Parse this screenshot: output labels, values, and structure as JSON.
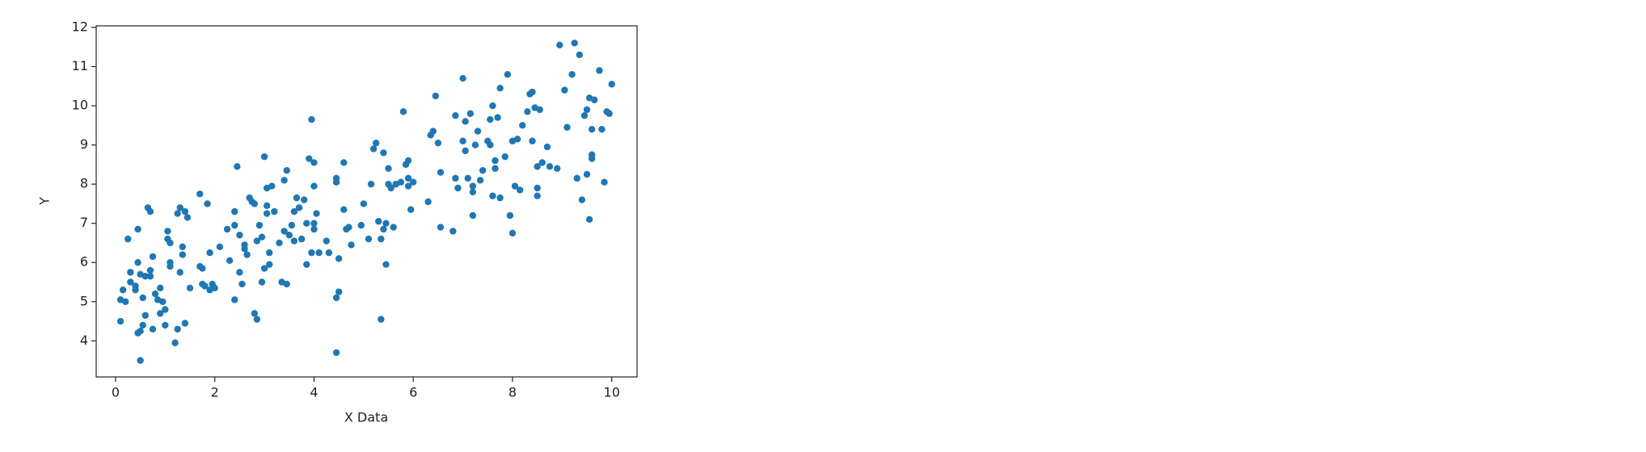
{
  "chart_data": {
    "type": "scatter",
    "xlabel": "X Data",
    "ylabel": "Y",
    "color": "#1f77b4",
    "xlim": [
      -0.39,
      10.51
    ],
    "ylim": [
      3.08,
      12.04
    ],
    "xticks": [
      0,
      2,
      4,
      6,
      8,
      10
    ],
    "yticks": [
      4,
      5,
      6,
      7,
      8,
      9,
      10,
      11,
      12
    ],
    "x": [
      0.1,
      0.1,
      0.15,
      0.2,
      0.25,
      0.3,
      0.3,
      0.4,
      0.4,
      0.45,
      0.45,
      0.45,
      0.5,
      0.5,
      0.5,
      0.55,
      0.55,
      0.6,
      0.6,
      0.65,
      0.7,
      0.7,
      0.7,
      0.75,
      0.75,
      0.8,
      0.85,
      0.9,
      0.9,
      0.95,
      1.0,
      1.0,
      1.05,
      1.05,
      1.1,
      1.1,
      1.1,
      1.2,
      1.25,
      1.25,
      1.3,
      1.3,
      1.35,
      1.35,
      1.4,
      1.4,
      1.45,
      1.5,
      1.7,
      1.7,
      1.75,
      1.75,
      1.8,
      1.85,
      1.9,
      1.9,
      1.95,
      2.0,
      2.1,
      2.25,
      2.3,
      2.4,
      2.4,
      2.4,
      2.45,
      2.5,
      2.5,
      2.55,
      2.6,
      2.6,
      2.65,
      2.7,
      2.75,
      2.8,
      2.8,
      2.85,
      2.85,
      2.9,
      2.95,
      2.95,
      3.0,
      3.0,
      3.05,
      3.05,
      3.05,
      3.1,
      3.1,
      3.15,
      3.2,
      3.3,
      3.35,
      3.4,
      3.4,
      3.45,
      3.45,
      3.5,
      3.55,
      3.6,
      3.6,
      3.65,
      3.7,
      3.75,
      3.8,
      3.85,
      3.85,
      3.9,
      3.95,
      3.95,
      4.0,
      4.0,
      4.0,
      4.0,
      4.05,
      4.1,
      4.25,
      4.3,
      4.45,
      4.45,
      4.45,
      4.45,
      4.5,
      4.5,
      4.6,
      4.6,
      4.65,
      4.7,
      4.75,
      4.95,
      5.0,
      5.1,
      5.15,
      5.2,
      5.25,
      5.3,
      5.35,
      5.35,
      5.4,
      5.4,
      5.45,
      5.45,
      5.5,
      5.5,
      5.55,
      5.6,
      5.65,
      5.75,
      5.8,
      5.85,
      5.9,
      5.9,
      5.9,
      5.95,
      6.0,
      6.3,
      6.35,
      6.4,
      6.45,
      6.5,
      6.55,
      6.55,
      6.8,
      6.85,
      6.85,
      6.9,
      7.0,
      7.0,
      7.05,
      7.05,
      7.1,
      7.15,
      7.2,
      7.2,
      7.2,
      7.25,
      7.3,
      7.35,
      7.4,
      7.5,
      7.55,
      7.55,
      7.6,
      7.6,
      7.65,
      7.65,
      7.7,
      7.75,
      7.75,
      7.85,
      7.9,
      7.95,
      8.0,
      8.0,
      8.05,
      8.1,
      8.15,
      8.2,
      8.3,
      8.35,
      8.4,
      8.4,
      8.45,
      8.5,
      8.5,
      8.5,
      8.55,
      8.6,
      8.7,
      8.75,
      8.9,
      8.95,
      9.05,
      9.1,
      9.2,
      9.25,
      9.3,
      9.35,
      9.4,
      9.45,
      9.5,
      9.5,
      9.55,
      9.55,
      9.6,
      9.6,
      9.65,
      9.6,
      9.75,
      9.8,
      9.85,
      9.9,
      9.95,
      10.0
    ],
    "values": [
      5.05,
      4.5,
      5.3,
      5.0,
      6.6,
      5.5,
      5.75,
      5.4,
      5.3,
      6.85,
      6.0,
      4.2,
      4.25,
      3.5,
      5.7,
      4.4,
      5.1,
      5.65,
      4.65,
      7.4,
      7.3,
      5.8,
      5.65,
      6.15,
      4.3,
      5.2,
      5.05,
      5.35,
      4.7,
      5.0,
      4.8,
      4.4,
      6.8,
      6.6,
      6.5,
      6.0,
      5.9,
      3.95,
      4.3,
      7.25,
      7.4,
      5.75,
      6.2,
      6.4,
      7.3,
      4.45,
      7.15,
      5.35,
      7.75,
      5.9,
      5.85,
      5.45,
      5.4,
      7.5,
      5.3,
      6.25,
      5.45,
      5.35,
      6.4,
      6.85,
      6.05,
      5.05,
      7.3,
      6.95,
      8.45,
      5.75,
      6.7,
      5.45,
      6.35,
      6.45,
      6.2,
      7.65,
      7.55,
      7.5,
      4.7,
      4.55,
      6.55,
      6.95,
      5.5,
      6.65,
      5.85,
      8.7,
      7.9,
      7.45,
      7.25,
      5.95,
      6.25,
      7.95,
      7.3,
      6.5,
      5.5,
      8.1,
      6.8,
      8.35,
      5.45,
      6.7,
      6.95,
      7.3,
      6.55,
      7.65,
      7.4,
      6.6,
      7.6,
      5.95,
      7.0,
      8.65,
      9.65,
      6.25,
      8.55,
      7.95,
      7.0,
      6.85,
      7.25,
      6.25,
      6.55,
      6.25,
      3.7,
      5.1,
      8.05,
      8.15,
      6.1,
      5.25,
      8.55,
      7.35,
      6.85,
      6.9,
      6.45,
      6.95,
      7.5,
      6.6,
      8.0,
      8.9,
      9.05,
      7.05,
      4.55,
      6.6,
      6.85,
      8.8,
      5.95,
      7.0,
      8.0,
      8.4,
      7.9,
      6.9,
      8.0,
      8.05,
      9.85,
      8.5,
      7.95,
      8.15,
      8.6,
      7.35,
      8.05,
      7.55,
      9.25,
      9.35,
      10.25,
      9.05,
      6.9,
      8.3,
      6.8,
      9.75,
      8.15,
      7.9,
      10.7,
      9.1,
      8.85,
      9.6,
      8.15,
      9.8,
      7.95,
      7.2,
      7.8,
      9.0,
      9.35,
      8.1,
      8.35,
      9.1,
      9.0,
      9.65,
      10.0,
      7.7,
      8.6,
      8.4,
      9.7,
      7.65,
      10.45,
      8.7,
      10.8,
      7.2,
      9.1,
      6.75,
      7.95,
      9.15,
      7.85,
      9.5,
      9.85,
      10.3,
      10.35,
      9.1,
      9.95,
      8.45,
      7.7,
      7.9,
      9.9,
      8.55,
      8.95,
      8.45,
      8.4,
      11.55,
      10.4,
      9.45,
      10.8,
      11.6,
      8.15,
      11.3,
      7.6,
      9.75,
      9.9,
      8.25,
      7.1,
      10.2,
      8.65,
      8.75,
      10.15,
      9.4,
      10.9,
      9.4,
      8.05,
      9.85,
      9.8,
      10.55
    ]
  }
}
